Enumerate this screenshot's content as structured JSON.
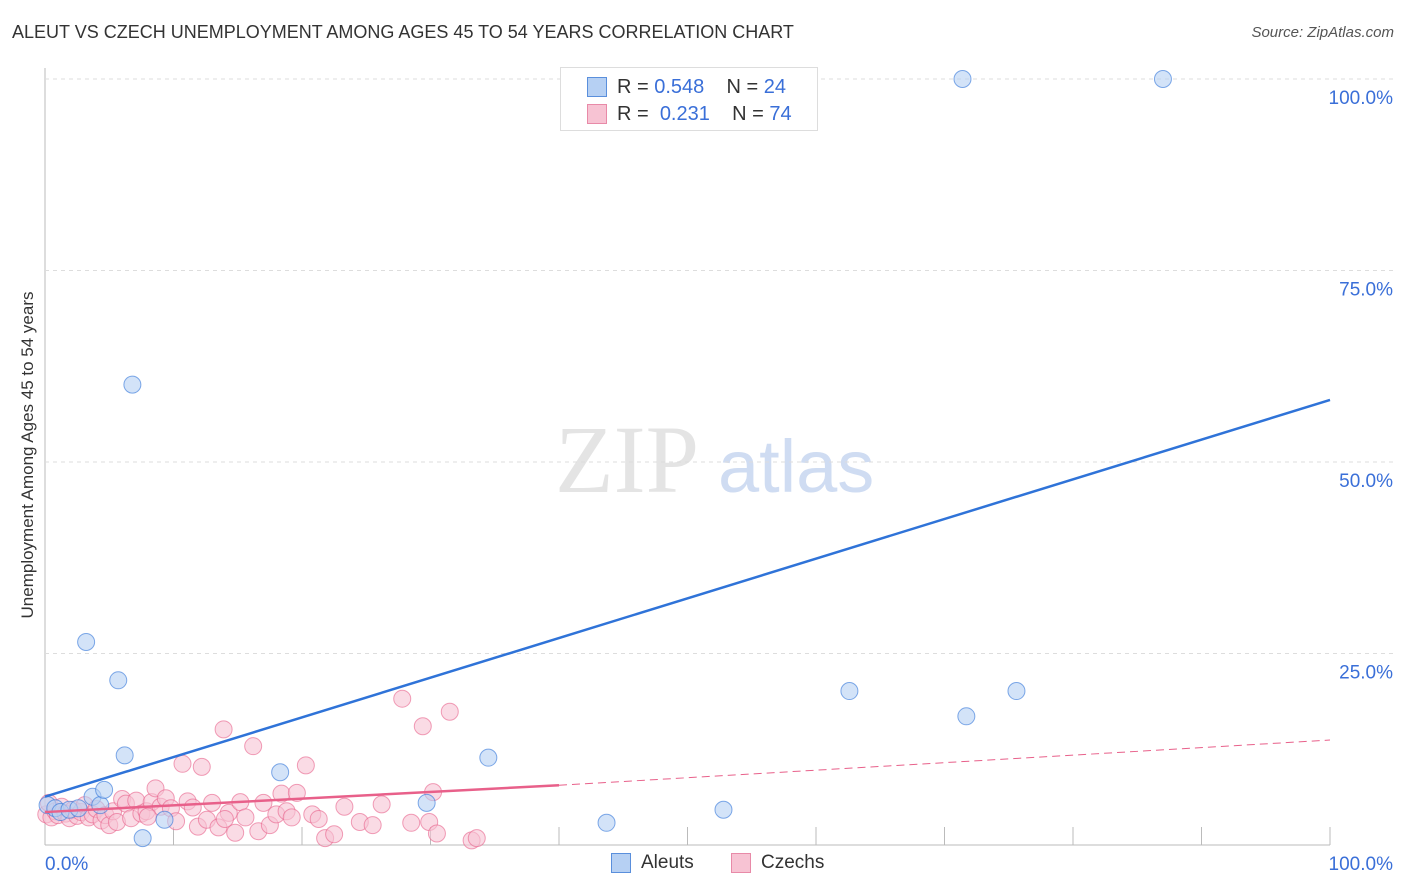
{
  "title": "ALEUT VS CZECH UNEMPLOYMENT AMONG AGES 45 TO 54 YEARS CORRELATION CHART",
  "source": "Source: ZipAtlas.com",
  "watermark": {
    "zip": "ZIP",
    "atlas": "atlas"
  },
  "legend": {
    "rows": [
      {
        "r_label": "R =",
        "r": "0.548",
        "n_label": "N =",
        "n": "24"
      },
      {
        "r_label": "R =",
        "r": "0.231",
        "n_label": "N =",
        "n": "74"
      }
    ]
  },
  "colors": {
    "aleuts": "#2f73d8",
    "czechs": "#e8608a",
    "aleuts_fill": "#b6d0f3",
    "czechs_fill": "#f7c3d3"
  },
  "chart_data": {
    "type": "scatter",
    "title": "ALEUT VS CZECH UNEMPLOYMENT AMONG AGES 45 TO 54 YEARS CORRELATION CHART",
    "xlabel": "",
    "ylabel": "Unemployment Among Ages 45 to 54 years",
    "xlim": [
      0,
      100
    ],
    "ylim": [
      0,
      100
    ],
    "x_tick_labels": [
      "0.0%",
      "100.0%"
    ],
    "y_tick_labels": [
      "100.0%",
      "75.0%",
      "50.0%",
      "25.0%"
    ],
    "y_ticks": [
      100,
      75,
      50,
      25
    ],
    "grid": true,
    "legend_position": "top-center",
    "series": [
      {
        "name": "Aleuts",
        "points": [
          [
            0.2,
            5.2
          ],
          [
            0.8,
            4.8
          ],
          [
            1.2,
            4.3
          ],
          [
            1.9,
            4.6
          ],
          [
            2.6,
            4.8
          ],
          [
            3.2,
            26.5
          ],
          [
            3.7,
            6.3
          ],
          [
            4.3,
            5.2
          ],
          [
            4.6,
            7.2
          ],
          [
            5.7,
            21.5
          ],
          [
            6.2,
            11.7
          ],
          [
            6.8,
            60.1
          ],
          [
            7.6,
            0.9
          ],
          [
            9.3,
            3.3
          ],
          [
            18.3,
            9.5
          ],
          [
            29.7,
            5.5
          ],
          [
            34.5,
            11.4
          ],
          [
            43.7,
            2.9
          ],
          [
            52.8,
            4.6
          ],
          [
            62.6,
            20.1
          ],
          [
            71.4,
            100
          ],
          [
            71.7,
            16.8
          ],
          [
            75.6,
            20.1
          ],
          [
            87.0,
            100
          ]
        ],
        "trend": [
          [
            0,
            6.3
          ],
          [
            100,
            58.1
          ]
        ]
      },
      {
        "name": "Czechs",
        "points": [
          [
            0.1,
            4.0
          ],
          [
            0.3,
            5.5
          ],
          [
            0.5,
            3.6
          ],
          [
            0.8,
            4.4
          ],
          [
            1.0,
            3.9
          ],
          [
            1.3,
            5.0
          ],
          [
            1.6,
            4.1
          ],
          [
            1.9,
            3.5
          ],
          [
            2.2,
            4.6
          ],
          [
            2.5,
            3.8
          ],
          [
            2.8,
            4.3
          ],
          [
            3.1,
            5.2
          ],
          [
            3.4,
            3.6
          ],
          [
            3.7,
            4.0
          ],
          [
            4.0,
            4.7
          ],
          [
            4.4,
            3.2
          ],
          [
            4.7,
            3.9
          ],
          [
            5.0,
            2.6
          ],
          [
            5.3,
            4.4
          ],
          [
            5.6,
            3.0
          ],
          [
            6.0,
            6.0
          ],
          [
            6.3,
            5.4
          ],
          [
            6.7,
            3.5
          ],
          [
            7.1,
            5.8
          ],
          [
            7.5,
            4.1
          ],
          [
            7.9,
            4.4
          ],
          [
            8.3,
            5.6
          ],
          [
            8.6,
            7.4
          ],
          [
            9.0,
            5.0
          ],
          [
            9.4,
            6.1
          ],
          [
            9.8,
            4.8
          ],
          [
            10.2,
            3.1
          ],
          [
            10.7,
            10.6
          ],
          [
            11.1,
            5.7
          ],
          [
            11.5,
            4.9
          ],
          [
            11.9,
            2.4
          ],
          [
            12.2,
            10.2
          ],
          [
            12.6,
            3.3
          ],
          [
            13.0,
            5.5
          ],
          [
            13.5,
            2.3
          ],
          [
            13.9,
            15.1
          ],
          [
            14.3,
            4.2
          ],
          [
            14.8,
            1.6
          ],
          [
            15.2,
            5.6
          ],
          [
            15.6,
            3.6
          ],
          [
            16.2,
            12.9
          ],
          [
            16.6,
            1.8
          ],
          [
            17.0,
            5.5
          ],
          [
            17.5,
            2.6
          ],
          [
            18.0,
            4.0
          ],
          [
            18.4,
            6.7
          ],
          [
            18.8,
            4.4
          ],
          [
            19.2,
            3.6
          ],
          [
            19.6,
            6.8
          ],
          [
            20.3,
            10.4
          ],
          [
            20.8,
            4.0
          ],
          [
            21.3,
            3.4
          ],
          [
            21.8,
            0.9
          ],
          [
            22.5,
            1.4
          ],
          [
            23.3,
            5.0
          ],
          [
            24.5,
            3.0
          ],
          [
            25.5,
            2.6
          ],
          [
            26.2,
            5.3
          ],
          [
            27.8,
            19.1
          ],
          [
            28.5,
            2.9
          ],
          [
            29.4,
            15.5
          ],
          [
            29.9,
            3.0
          ],
          [
            30.2,
            6.9
          ],
          [
            31.5,
            17.4
          ],
          [
            33.2,
            0.6
          ],
          [
            33.6,
            0.9
          ],
          [
            30.5,
            1.5
          ],
          [
            14.0,
            3.4
          ],
          [
            8.0,
            3.7
          ]
        ],
        "trend": [
          [
            0,
            4.3
          ],
          [
            40,
            7.8
          ]
        ],
        "trend_dashed": [
          [
            40,
            7.8
          ],
          [
            100,
            13.7
          ]
        ]
      }
    ]
  }
}
